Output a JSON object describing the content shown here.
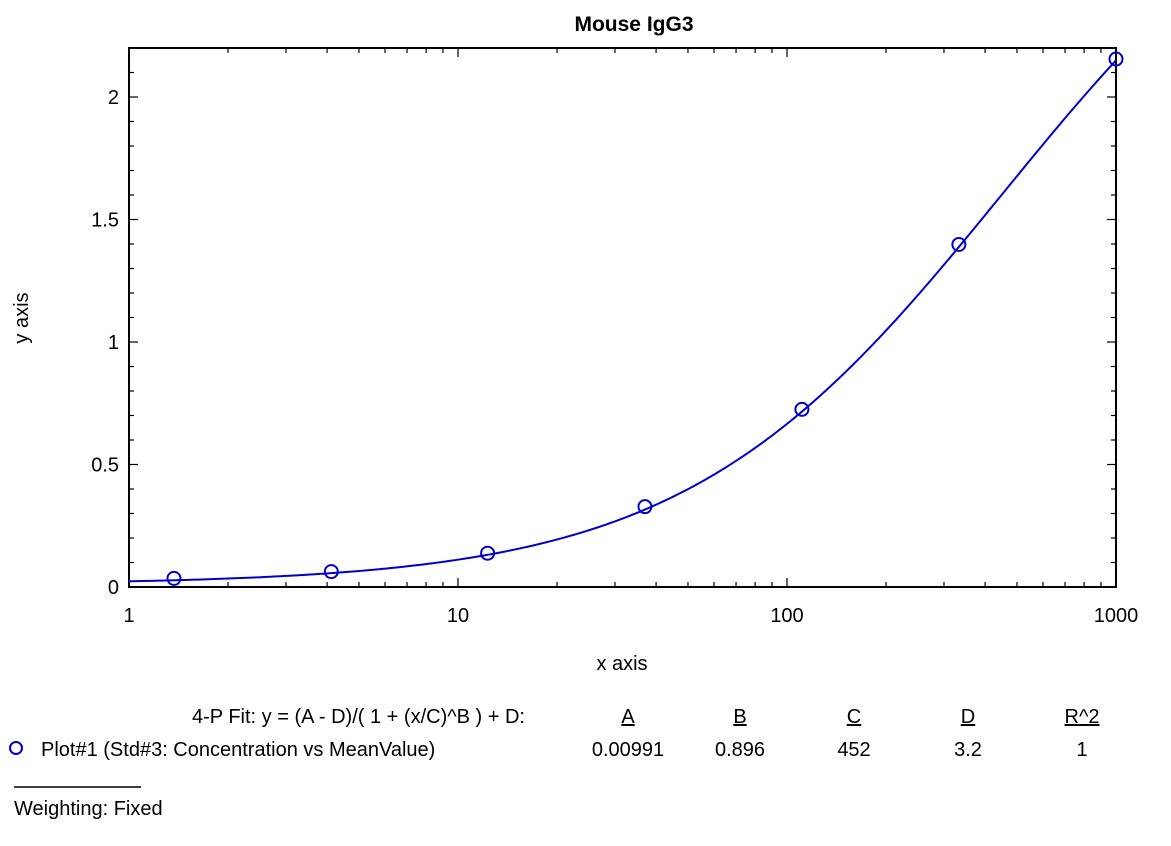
{
  "chart_data": {
    "type": "scatter",
    "title": "Mouse IgG3",
    "xlabel": "x axis",
    "ylabel": "y axis",
    "x_scale": "log",
    "xlim": [
      1,
      1000
    ],
    "ylim": [
      0,
      2.2
    ],
    "x_ticks": [
      1,
      10,
      100,
      1000
    ],
    "x_tick_labels": [
      "1",
      "10",
      "100",
      "1000"
    ],
    "y_ticks": [
      0,
      0.5,
      1,
      1.5,
      2
    ],
    "y_tick_labels": [
      "0",
      "0.5",
      "1",
      "1.5",
      "2"
    ],
    "grid": false,
    "colors": {
      "series": "#0000cc",
      "axis": "#000000"
    },
    "series": [
      {
        "name": "Plot#1 (Std#3: Concentration vs MeanValue)",
        "x": [
          1.37,
          4.12,
          12.3,
          37.0,
          111,
          333,
          1000
        ],
        "y": [
          0.035,
          0.063,
          0.138,
          0.328,
          0.725,
          1.398,
          2.155
        ],
        "marker": "circle"
      }
    ],
    "fit": {
      "model": "4-P Fit",
      "params": {
        "A": 0.00991,
        "B": 0.896,
        "C": 452,
        "D": 3.2
      }
    }
  },
  "legend": {
    "fit_equation": "4-P Fit: y = (A - D)/( 1 + (x/C)^B ) + D:",
    "headers": [
      "A",
      "B",
      "C",
      "D",
      "R^2"
    ],
    "series_label": "Plot#1 (Std#3: Concentration vs MeanValue)",
    "values": [
      "0.00991",
      "0.896",
      "452",
      "3.2",
      "1"
    ],
    "weighting": "Weighting: Fixed"
  }
}
